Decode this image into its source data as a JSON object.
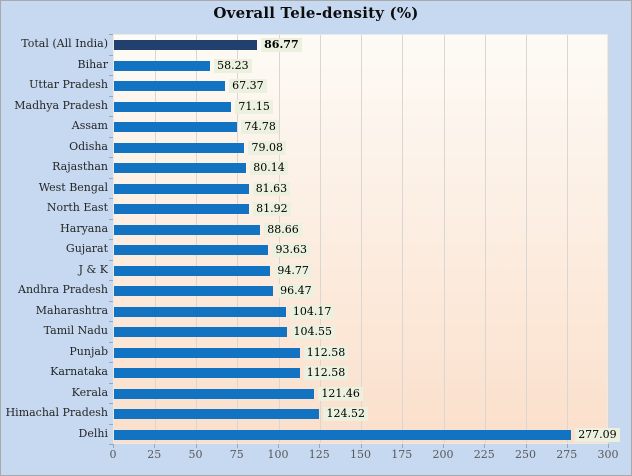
{
  "chart_data": {
    "type": "bar",
    "orientation": "horizontal",
    "title": "Overall Tele-density (%)",
    "categories": [
      "Total (All India)",
      "Bihar",
      "Uttar Pradesh",
      "Madhya Pradesh",
      "Assam",
      "Odisha",
      "Rajasthan",
      "West Bengal",
      "North East",
      "Haryana",
      "Gujarat",
      "J & K",
      "Andhra Pradesh",
      "Maharashtra",
      "Tamil Nadu",
      "Punjab",
      "Karnataka",
      "Kerala",
      "Himachal Pradesh",
      "Delhi"
    ],
    "values": [
      86.77,
      58.23,
      67.37,
      71.15,
      74.78,
      79.08,
      80.14,
      81.63,
      81.92,
      88.66,
      93.63,
      94.77,
      96.47,
      104.17,
      104.55,
      112.58,
      112.58,
      121.46,
      124.52,
      277.09
    ],
    "value_labels": [
      "86.77",
      "58.23",
      "67.37",
      "71.15",
      "74.78",
      "79.08",
      "80.14",
      "81.63",
      "81.92",
      "88.66",
      "93.63",
      "94.77",
      "96.47",
      "104.17",
      "104.55",
      "112.58",
      "112.58",
      "121.46",
      "124.52",
      "277.09"
    ],
    "highlight_index": 0,
    "xlim": [
      0,
      300
    ],
    "x_ticks": [
      "0",
      "25",
      "50",
      "75",
      "100",
      "125",
      "150",
      "175",
      "200",
      "225",
      "250",
      "275",
      "300"
    ],
    "grid": true,
    "legend": "none",
    "colors": {
      "background": "#c6d9f1",
      "plot_gradient_top": "#fdfbf6",
      "plot_gradient_bottom": "#fbdfcb",
      "bar": "#1173c2",
      "bar_highlight": "#21406d",
      "value_label_background": "#ebf1de",
      "gridline": "#dad7d2",
      "category_text": "#262626",
      "axis_text": "#595959"
    }
  }
}
